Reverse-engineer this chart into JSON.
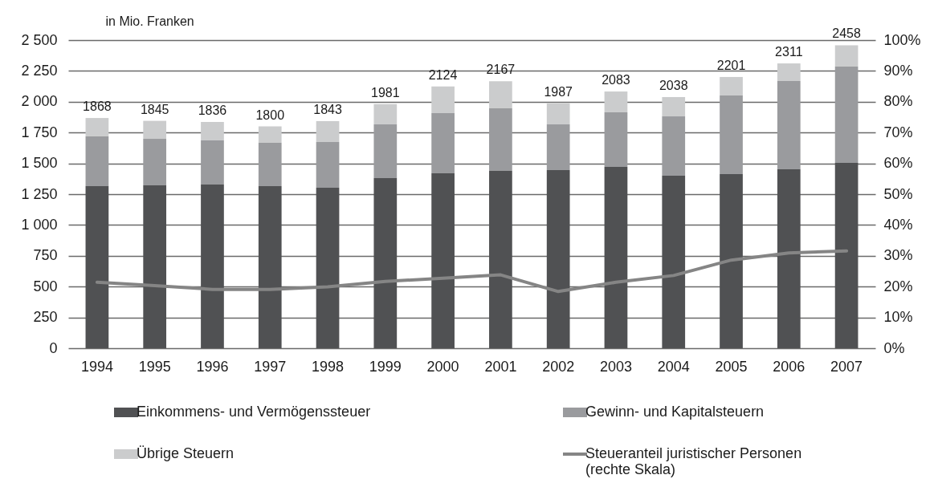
{
  "chart_data": {
    "type": "bar",
    "stacked": true,
    "ylabel": "in Mio. Franken",
    "categories": [
      "1994",
      "1995",
      "1996",
      "1997",
      "1998",
      "1999",
      "2000",
      "2001",
      "2002",
      "2003",
      "2004",
      "2005",
      "2006",
      "2007"
    ],
    "series": [
      {
        "name": "Einkommens- und Vermögenssteuer",
        "color": "#505153",
        "values": [
          1315,
          1322,
          1328,
          1315,
          1302,
          1380,
          1419,
          1439,
          1445,
          1471,
          1400,
          1413,
          1452,
          1504
        ]
      },
      {
        "name": "Gewinn- und Kapitalsteuern",
        "color": "#9a9b9e",
        "values": [
          404,
          377,
          358,
          352,
          371,
          436,
          489,
          508,
          371,
          443,
          481,
          638,
          716,
          781
        ]
      },
      {
        "name": "Übrige Steuern",
        "color": "#cbcccd",
        "values": [
          149,
          146,
          150,
          133,
          170,
          165,
          216,
          220,
          171,
          169,
          157,
          150,
          143,
          173
        ]
      },
      {
        "name": "Steueranteil juristischer Personen (rechte Skala)",
        "type": "line",
        "axis": "y2",
        "color": "#858585",
        "values": [
          21.4,
          20.3,
          19.1,
          19.1,
          19.9,
          21.7,
          22.7,
          23.8,
          18.4,
          21.4,
          23.6,
          28.6,
          30.9,
          31.6
        ]
      }
    ],
    "totals": [
      "1868",
      "1845",
      "1836",
      "1800",
      "1843",
      "1981",
      "2124",
      "2167",
      "1987",
      "2083",
      "2038",
      "2201",
      "2311",
      "2458"
    ],
    "ylim": [
      0,
      2500
    ],
    "yticks": [
      0,
      250,
      500,
      750,
      {
        "value": 1000,
        "label": "1 000"
      },
      {
        "value": 1250,
        "label": "1 250"
      },
      {
        "value": 1500,
        "label": "1 500"
      },
      {
        "value": 1750,
        "label": "1 750"
      },
      {
        "value": 2000,
        "label": "2 000"
      },
      {
        "value": 2250,
        "label": "2 250"
      },
      {
        "value": 2500,
        "label": "2 500"
      }
    ],
    "y2lim": [
      0,
      100
    ],
    "y2ticks": [
      {
        "value": 0,
        "label": "0%"
      },
      {
        "value": 10,
        "label": "10%"
      },
      {
        "value": 20,
        "label": "20%"
      },
      {
        "value": 30,
        "label": "30%"
      },
      {
        "value": 40,
        "label": "40%"
      },
      {
        "value": 50,
        "label": "50%"
      },
      {
        "value": 60,
        "label": "60%"
      },
      {
        "value": 70,
        "label": "70%"
      },
      {
        "value": 80,
        "label": "80%"
      },
      {
        "value": 90,
        "label": "90%"
      },
      {
        "value": 100,
        "label": "100%"
      }
    ],
    "grid": "y",
    "legend": "bottom"
  }
}
